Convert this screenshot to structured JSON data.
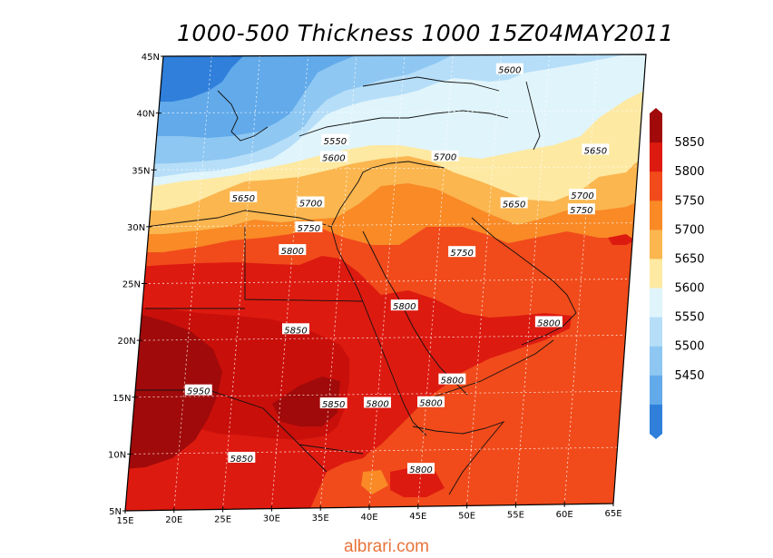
{
  "title": "1000-500 Thickness 1000 15Z04MAY2011",
  "watermark": "albrari.com",
  "map": {
    "lat_labels": [
      "5N",
      "10N",
      "15N",
      "20N",
      "25N",
      "30N",
      "35N",
      "40N",
      "45N"
    ],
    "lon_labels": [
      "15E",
      "20E",
      "25E",
      "30E",
      "35E",
      "40E",
      "45E",
      "50E",
      "55E",
      "60E",
      "65E"
    ],
    "contour_labels": [
      {
        "text": "5600",
        "lon": 51,
        "lat": 43.7
      },
      {
        "text": "5550",
        "lon": 33.5,
        "lat": 37.5
      },
      {
        "text": "5600",
        "lon": 33.5,
        "lat": 36.0
      },
      {
        "text": "5700",
        "lon": 45.0,
        "lat": 36.0
      },
      {
        "text": "5650",
        "lon": 60.5,
        "lat": 36.5
      },
      {
        "text": "5650",
        "lon": 24.5,
        "lat": 32.5
      },
      {
        "text": "5700",
        "lon": 31.5,
        "lat": 32.0
      },
      {
        "text": "5650",
        "lon": 52.5,
        "lat": 31.8
      },
      {
        "text": "5700",
        "lon": 59.5,
        "lat": 32.5
      },
      {
        "text": "5750",
        "lon": 59.5,
        "lat": 31.2
      },
      {
        "text": "5750",
        "lon": 31.5,
        "lat": 29.8
      },
      {
        "text": "5800",
        "lon": 30.0,
        "lat": 27.8
      },
      {
        "text": "5750",
        "lon": 47.5,
        "lat": 27.5
      },
      {
        "text": "5800",
        "lon": 42.0,
        "lat": 22.8
      },
      {
        "text": "5800",
        "lon": 57.0,
        "lat": 21.2
      },
      {
        "text": "5850",
        "lon": 31.0,
        "lat": 20.8
      },
      {
        "text": "5950",
        "lon": 21.5,
        "lat": 15.5
      },
      {
        "text": "5850",
        "lon": 35.5,
        "lat": 14.2
      },
      {
        "text": "5800",
        "lon": 40.0,
        "lat": 14.2
      },
      {
        "text": "5800",
        "lon": 45.5,
        "lat": 14.2
      },
      {
        "text": "5800",
        "lon": 47.5,
        "lat": 16.2
      },
      {
        "text": "5850",
        "lon": 26.5,
        "lat": 9.5
      },
      {
        "text": "5800",
        "lon": 45.0,
        "lat": 8.3
      }
    ]
  },
  "legend": {
    "levels": [
      "5850",
      "5800",
      "5750",
      "5700",
      "5650",
      "5600",
      "5550",
      "5500",
      "5450"
    ],
    "colors": [
      "#a00a0a",
      "#dd1a10",
      "#f14b1b",
      "#f98a26",
      "#fbb64f",
      "#fde9a2",
      "#e0f4fb",
      "#b6def8",
      "#8ec7f2",
      "#62aaea",
      "#2f7fdb"
    ]
  }
}
